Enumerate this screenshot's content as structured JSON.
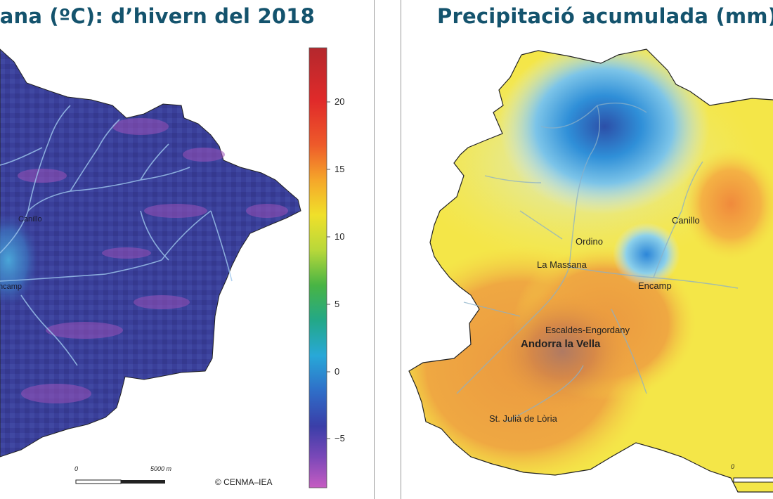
{
  "left_map": {
    "title": "ana (ºC): d’hivern del 2018",
    "colorbar_ticks": [
      "20",
      "15",
      "10",
      "5",
      "0",
      "−5"
    ],
    "colorbar_colors": [
      "#b4282d",
      "#e83a2c",
      "#f07a2a",
      "#f5c52a",
      "#e8e82c",
      "#7ec83a",
      "#2fa44a",
      "#26b3c8",
      "#2b7fd0",
      "#3646a8",
      "#5a3fa8",
      "#c25cc0"
    ],
    "places": {
      "canillo": "Canillo",
      "encamp": "ncamp"
    },
    "scale": {
      "start": "0",
      "end": "5000 m"
    },
    "credit": "© CENMA–IEA"
  },
  "right_map": {
    "title": "Precipitació acumulada (mm)",
    "places": {
      "canillo": "Canillo",
      "ordino": "Ordino",
      "la_massana": "La Massana",
      "encamp": "Encamp",
      "escaldes": "Escaldes-Engordany",
      "andorra": "Andorra la Vella",
      "st_julia": "St. Julià de Lòria"
    },
    "scale": {
      "start": "0"
    }
  }
}
